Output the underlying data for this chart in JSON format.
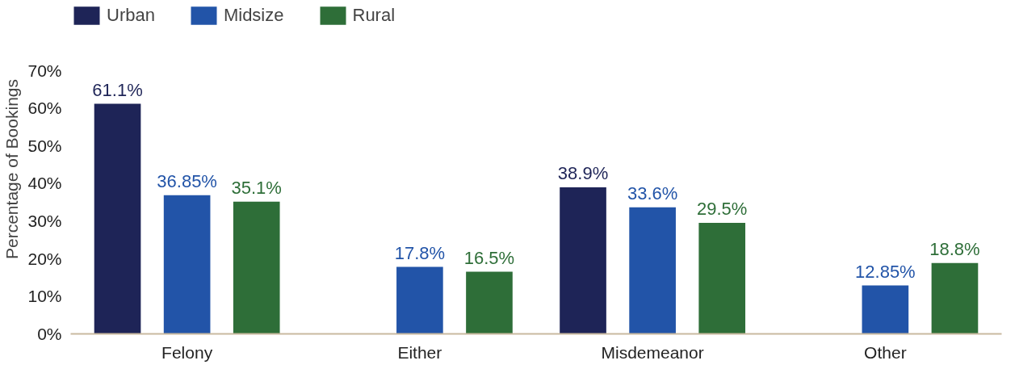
{
  "chart_data": {
    "type": "bar",
    "ylabel": "Percentage of Bookings",
    "categories": [
      "Felony",
      "Either",
      "Misdemeanor",
      "Other"
    ],
    "series": [
      {
        "name": "Urban",
        "color": "#1e2457",
        "values": [
          61.1,
          null,
          38.9,
          null
        ],
        "value_labels": [
          "61.1%",
          null,
          "38.9%",
          null
        ]
      },
      {
        "name": "Midsize",
        "color": "#2254a8",
        "values": [
          36.85,
          17.8,
          33.6,
          12.85
        ],
        "value_labels": [
          "36.85%",
          "17.8%",
          "33.6%",
          "12.85%"
        ]
      },
      {
        "name": "Rural",
        "color": "#2e6e38",
        "values": [
          35.1,
          16.5,
          29.5,
          18.8
        ],
        "value_labels": [
          "35.1%",
          "16.5%",
          "29.5%",
          "18.8%"
        ]
      }
    ],
    "ylim": [
      0,
      70
    ],
    "yticks": [
      {
        "value": 0,
        "label": "0%"
      },
      {
        "value": 10,
        "label": "10%"
      },
      {
        "value": 20,
        "label": "20%"
      },
      {
        "value": 30,
        "label": "30%"
      },
      {
        "value": 40,
        "label": "40%"
      },
      {
        "value": 50,
        "label": "50%"
      },
      {
        "value": 60,
        "label": "60%"
      },
      {
        "value": 70,
        "label": "70%"
      }
    ],
    "grid": false,
    "legend": "top left"
  }
}
